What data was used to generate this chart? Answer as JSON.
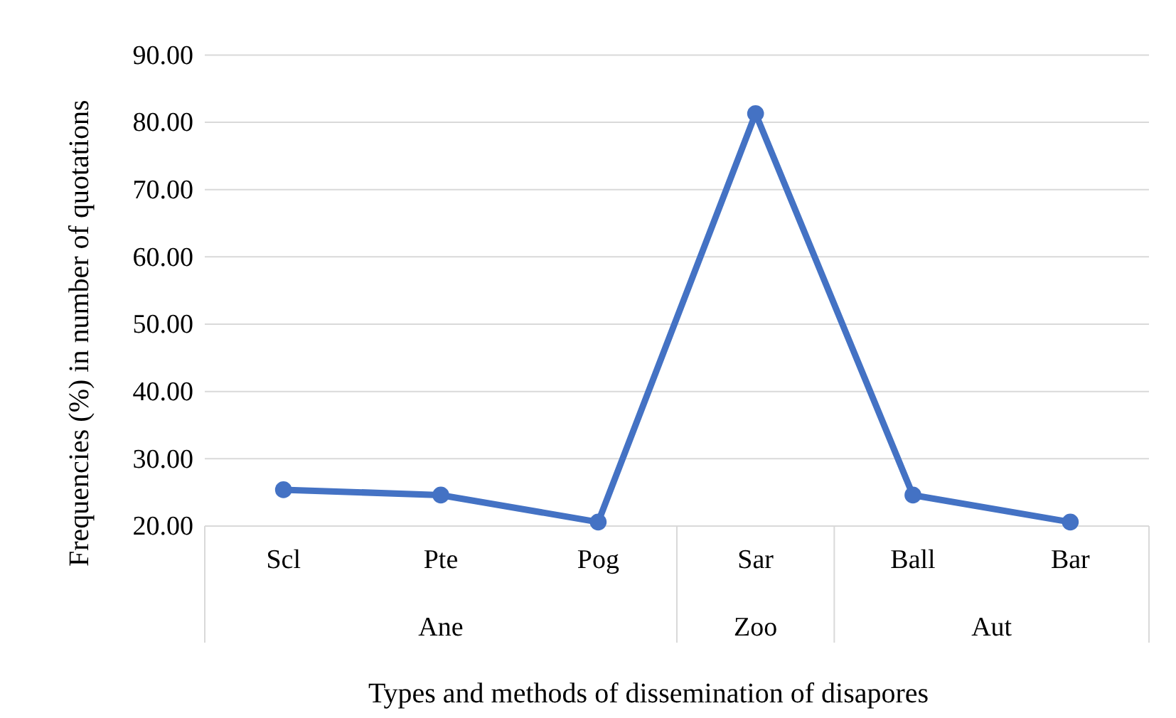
{
  "chart_data": {
    "type": "line",
    "xlabel": "Types and methods of dissemination of disapores",
    "ylabel": "Frequencies (%) in number of quotations",
    "categories": [
      "Scl",
      "Pte",
      "Pog",
      "Sar",
      "Ball",
      "Bar"
    ],
    "series": [
      {
        "color": "#4472c4",
        "values": [
          25.4,
          24.6,
          20.6,
          81.3,
          24.6,
          20.6
        ]
      }
    ],
    "ylim": [
      20,
      90
    ],
    "yticks": [
      {
        "value": 20,
        "label": "20.00"
      },
      {
        "value": 30,
        "label": "30.00"
      },
      {
        "value": 40,
        "label": "40.00"
      },
      {
        "value": 50,
        "label": "50.00"
      },
      {
        "value": 60,
        "label": "60.00"
      },
      {
        "value": 70,
        "label": "70.00"
      },
      {
        "value": 80,
        "label": "80.00"
      },
      {
        "value": 90,
        "label": "90.00"
      }
    ],
    "grid": "y",
    "marker": "circle",
    "line_style": "solid",
    "annotations": [
      "Ane",
      "Zoo",
      "Aut"
    ]
  }
}
